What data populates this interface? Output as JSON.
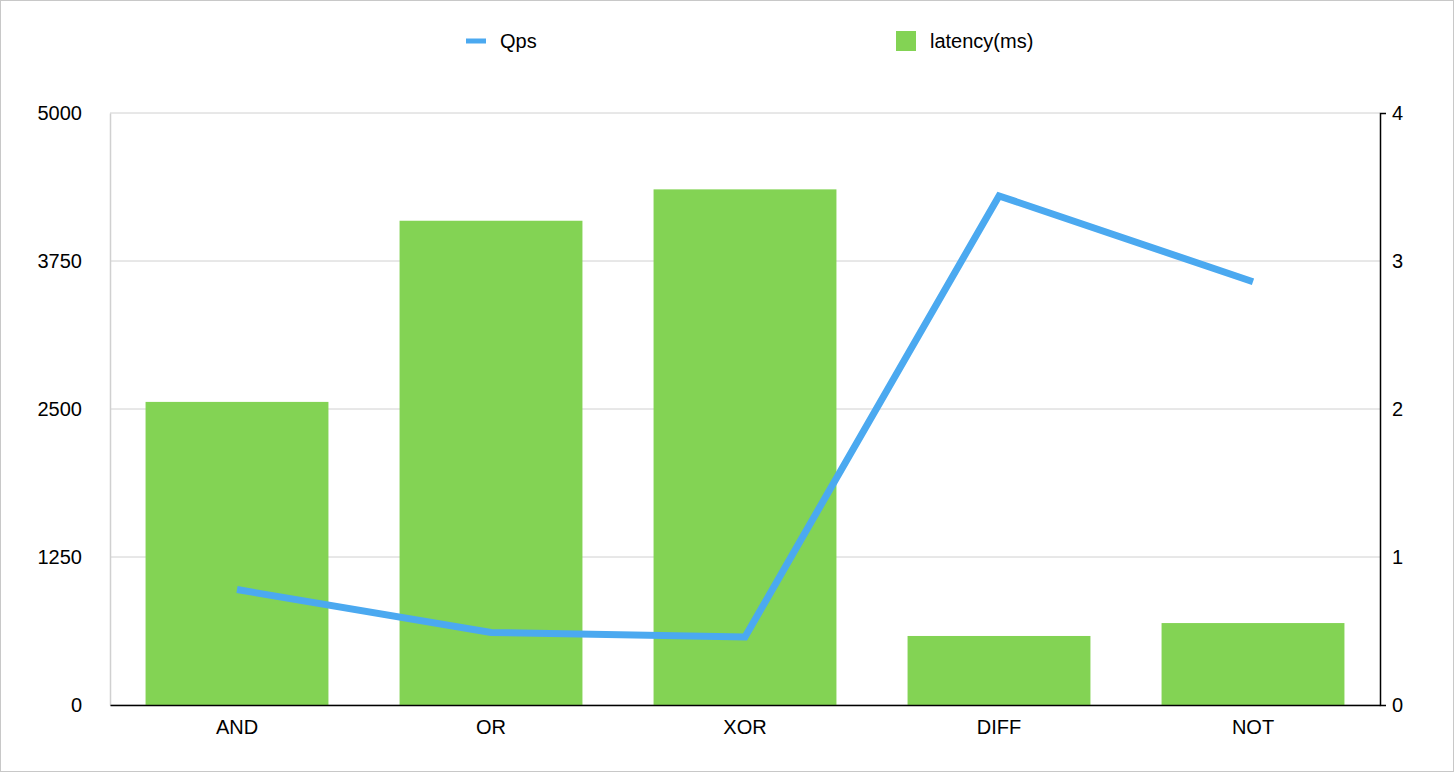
{
  "chart_data": {
    "type": "bar",
    "categories": [
      "AND",
      "OR",
      "XOR",
      "DIFF",
      "NOT"
    ],
    "series": [
      {
        "name": "Qps",
        "color": "#4ba9f0",
        "type": "line",
        "axis": "y2",
        "values": [
          0.78,
          0.49,
          0.46,
          3.44,
          2.86
        ]
      },
      {
        "name": "latency(ms)",
        "color": "#83d354",
        "type": "bar",
        "values": [
          2560,
          4090,
          4355,
          583,
          692
        ]
      }
    ],
    "ylim": [
      0,
      5000
    ],
    "yticks": [
      0,
      1250,
      2500,
      3750,
      5000
    ],
    "y2lim": [
      0,
      4
    ],
    "y2ticks": [
      0,
      1,
      2,
      3,
      4
    ],
    "grid": true,
    "legend": "top"
  }
}
